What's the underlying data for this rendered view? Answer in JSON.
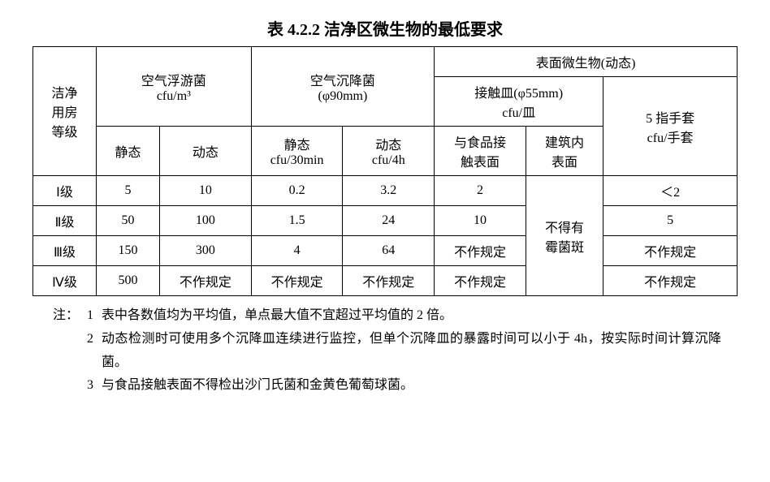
{
  "title": "表 4.2.2  洁净区微生物的最低要求",
  "headers": {
    "col_grade": "洁净\n用房\n等级",
    "air_float": "空气浮游菌\ncfu/m³",
    "air_float_static": "静态",
    "air_float_dynamic": "动态",
    "air_settle": "空气沉降菌\n(φ90mm)",
    "air_settle_static": "静态\ncfu/30min",
    "air_settle_dynamic": "动态\ncfu/4h",
    "surface_group": "表面微生物(动态)",
    "contact_plate": "接触皿(φ55mm)\ncfu/皿",
    "contact_food": "与食品接\n触表面",
    "contact_building": "建筑内\n表面",
    "glove": "5 指手套\ncfu/手套"
  },
  "rows": [
    {
      "grade": "Ⅰ级",
      "float_s": "5",
      "float_d": "10",
      "settle_s": "0.2",
      "settle_d": "3.2",
      "food": "2",
      "glove": "＜2"
    },
    {
      "grade": "Ⅱ级",
      "float_s": "50",
      "float_d": "100",
      "settle_s": "1.5",
      "settle_d": "24",
      "food": "10",
      "glove": "5"
    },
    {
      "grade": "Ⅲ级",
      "float_s": "150",
      "float_d": "300",
      "settle_s": "4",
      "settle_d": "64",
      "food": "不作规定",
      "glove": "不作规定"
    },
    {
      "grade": "Ⅳ级",
      "float_s": "500",
      "float_d": "不作规定",
      "settle_s": "不作规定",
      "settle_d": "不作规定",
      "food": "不作规定",
      "glove": "不作规定"
    }
  ],
  "building_merged": "不得有\n霉菌斑",
  "notes_label": "注：",
  "notes": [
    "表中各数值均为平均值，单点最大值不宜超过平均值的 2 倍。",
    "动态检测时可使用多个沉降皿连续进行监控，但单个沉降皿的暴露时间可以小于 4h，按实际时间计算沉降菌。",
    "与食品接触表面不得检出沙门氏菌和金黄色葡萄球菌。"
  ],
  "colors": {
    "text": "#000000",
    "border": "#000000",
    "bg": "#ffffff"
  },
  "col_widths_pct": [
    9,
    9,
    13,
    13,
    13,
    13,
    11,
    19
  ]
}
